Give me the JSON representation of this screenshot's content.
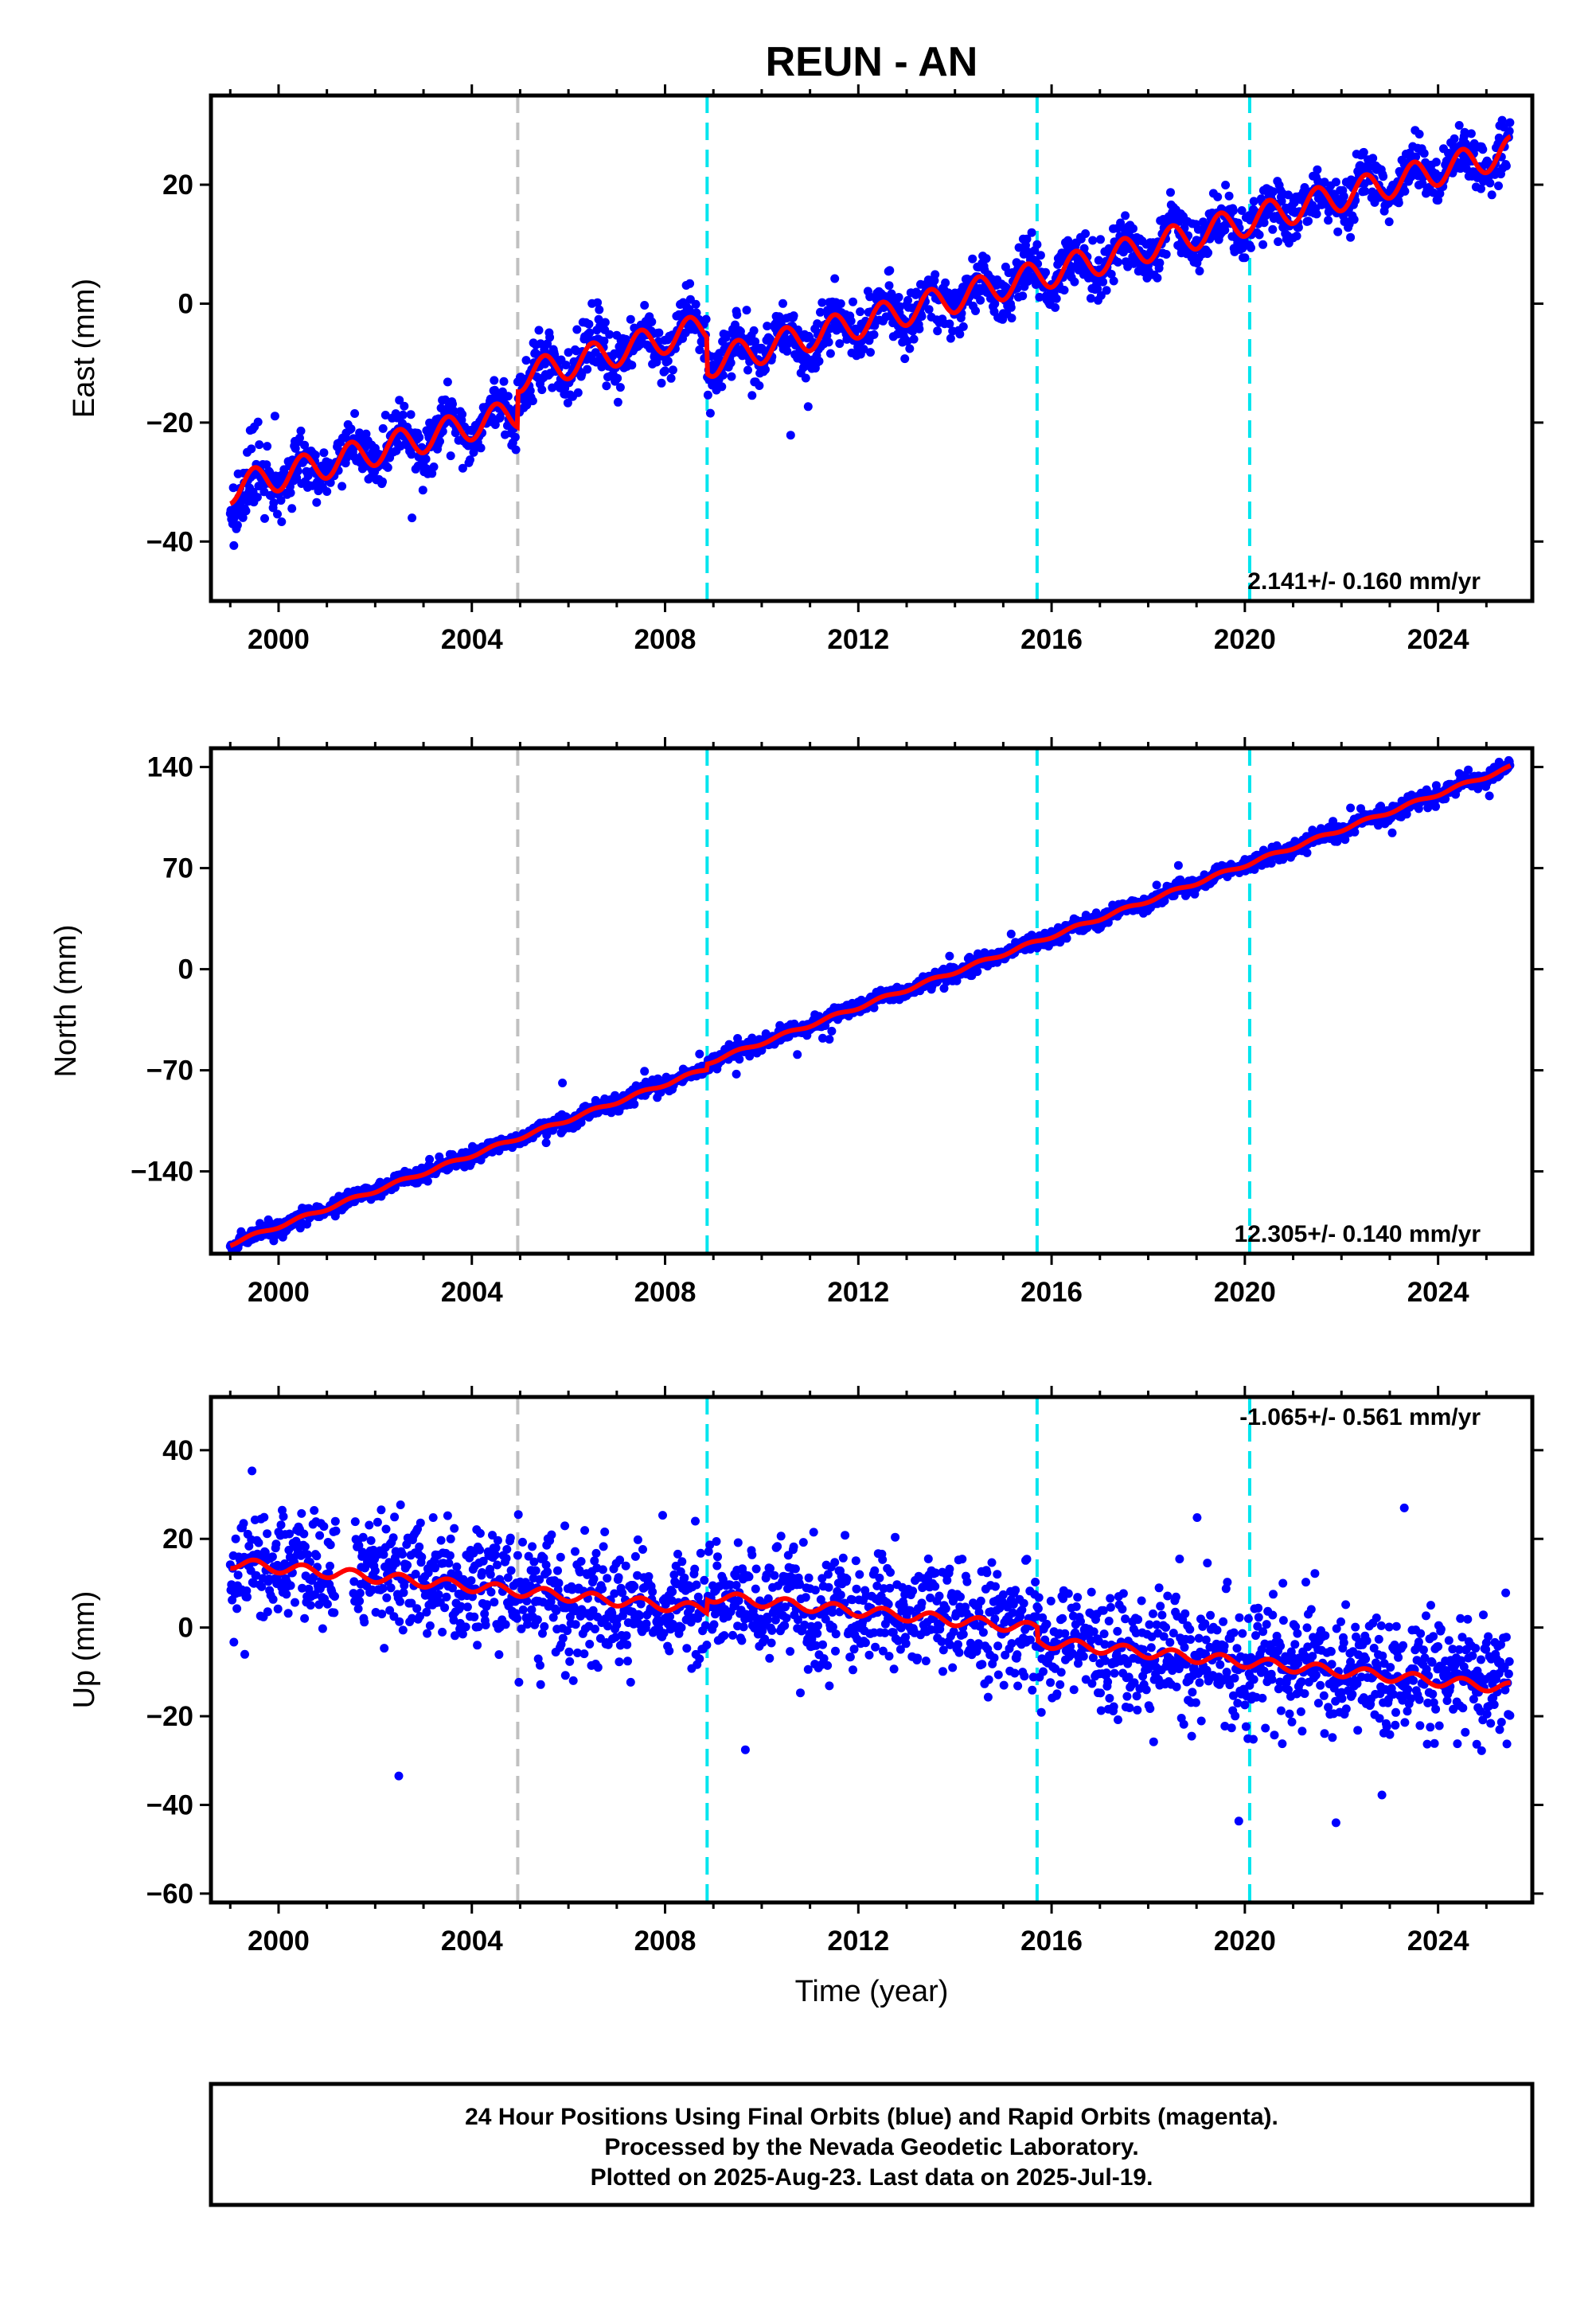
{
  "title": "REUN - AN",
  "xlabel": "Time (year)",
  "footer": {
    "line1": "24 Hour Positions Using Final Orbits (blue) and Rapid Orbits (magenta).",
    "line2": "Processed by the Nevada Geodetic Laboratory.",
    "line3": "Plotted on 2025-Aug-23. Last data on 2025-Jul-19."
  },
  "colors": {
    "points": "#0000ff",
    "model": "#ff0000",
    "steps_equipment": "#c0c0c0",
    "steps_other": "#00e5ee"
  },
  "chart_data": [
    {
      "type": "scatter",
      "name": "east",
      "ylabel": "East (mm)",
      "rate_label": "2.141+/- 0.160 mm/yr",
      "xlim": [
        1998.6,
        2025.95
      ],
      "ylim": [
        -50,
        35
      ],
      "xticks": [
        2000,
        2004,
        2008,
        2012,
        2016,
        2020,
        2024
      ],
      "yticks": [
        -40,
        -20,
        0,
        20
      ],
      "step_lines": [
        {
          "x": 2004.95,
          "kind": "equipment"
        },
        {
          "x": 2008.87,
          "kind": "other"
        },
        {
          "x": 2015.7,
          "kind": "other"
        },
        {
          "x": 2020.1,
          "kind": "other"
        }
      ],
      "rate": 2.141,
      "trend_anchor": [
        2000,
        -29
      ],
      "offsets": [
        [
          2004.95,
          6
        ],
        [
          2008.87,
          -6
        ]
      ],
      "seasonal_amplitude": 2.5,
      "scatter": 2.2,
      "model_points": [
        [
          1999,
          -32
        ],
        [
          2005,
          -19
        ],
        [
          2008.9,
          -4
        ],
        [
          2025.5,
          25
        ]
      ]
    },
    {
      "type": "scatter",
      "name": "north",
      "ylabel": "North (mm)",
      "rate_label": "12.305+/- 0.140 mm/yr",
      "xlim": [
        1998.6,
        2025.95
      ],
      "ylim": [
        -197,
        153
      ],
      "xticks": [
        2000,
        2004,
        2008,
        2012,
        2016,
        2020,
        2024
      ],
      "yticks": [
        -140,
        -70,
        0,
        70,
        140
      ],
      "step_lines": [
        {
          "x": 2004.95,
          "kind": "equipment"
        },
        {
          "x": 2008.87,
          "kind": "other"
        },
        {
          "x": 2015.7,
          "kind": "other"
        },
        {
          "x": 2020.1,
          "kind": "other"
        }
      ],
      "rate": 12.305,
      "trend_anchor": [
        2000,
        -178
      ],
      "offsets": [
        [
          2008.87,
          4
        ]
      ],
      "seasonal_amplitude": 1.2,
      "scatter": 2.6,
      "model_points": [
        [
          1999,
          -188
        ],
        [
          2005,
          -115
        ],
        [
          2008.9,
          -68
        ],
        [
          2025.5,
          146
        ]
      ]
    },
    {
      "type": "scatter",
      "name": "up",
      "ylabel": "Up (mm)",
      "rate_label": "-1.065+/- 0.561 mm/yr",
      "xlim": [
        1998.6,
        2025.95
      ],
      "ylim": [
        -62,
        52
      ],
      "xticks": [
        2000,
        2004,
        2008,
        2012,
        2016,
        2020,
        2024
      ],
      "yticks": [
        -60,
        -40,
        -20,
        0,
        20,
        40
      ],
      "step_lines": [
        {
          "x": 2004.95,
          "kind": "equipment"
        },
        {
          "x": 2008.87,
          "kind": "other"
        },
        {
          "x": 2015.7,
          "kind": "other"
        },
        {
          "x": 2020.1,
          "kind": "other"
        }
      ],
      "rate": -1.065,
      "trend_anchor": [
        2000,
        13.5
      ],
      "offsets": [
        [
          2008.87,
          3
        ],
        [
          2015.7,
          -3
        ]
      ],
      "seasonal_amplitude": 1.2,
      "scatter": 6.5,
      "model_points": [
        [
          1999,
          14
        ],
        [
          2008.8,
          4
        ],
        [
          2009,
          7
        ],
        [
          2025.5,
          -12
        ]
      ]
    }
  ]
}
